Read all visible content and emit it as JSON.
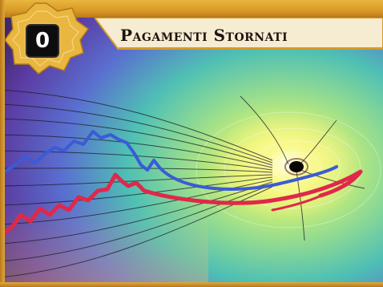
{
  "card": {
    "title": "Pagamenti Stornati",
    "cost": "0"
  },
  "icons": {
    "emblem": "gold-ornament-icon"
  },
  "colors": {
    "frame_gold": "#e0a83a",
    "banner": "#f6ecd2",
    "cost_box": "#0d0d0d",
    "blue_line": "#3b5bd6",
    "red_line": "#e0284a"
  }
}
